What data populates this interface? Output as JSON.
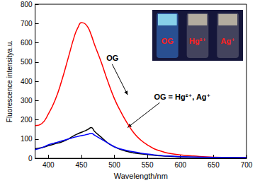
{
  "chart_data": {
    "type": "line",
    "x_label": "Wavelength/nm",
    "y_label": "Fluorescence intensitya.u.",
    "x": [
      380,
      390,
      400,
      410,
      420,
      430,
      440,
      445,
      450,
      455,
      460,
      465,
      470,
      480,
      490,
      500,
      510,
      520,
      530,
      540,
      550,
      560,
      570,
      580,
      600,
      620,
      650,
      700
    ],
    "series": [
      {
        "name": "OG",
        "color": "#ff0000",
        "values": [
          170,
          180,
          230,
          300,
          400,
          520,
          640,
          680,
          705,
          700,
          680,
          640,
          590,
          500,
          400,
          310,
          240,
          180,
          130,
          95,
          70,
          50,
          38,
          28,
          18,
          12,
          6,
          3
        ]
      },
      {
        "name": "Hg²⁺",
        "color": "#000000",
        "values": [
          50,
          55,
          65,
          75,
          85,
          100,
          120,
          128,
          135,
          142,
          150,
          160,
          140,
          110,
          80,
          60,
          45,
          35,
          28,
          23,
          20,
          16,
          13,
          11,
          8,
          6,
          5,
          3
        ]
      },
      {
        "name": "Ag⁺",
        "color": "#0000ff",
        "values": [
          45,
          55,
          70,
          80,
          90,
          100,
          110,
          114,
          118,
          121,
          125,
          130,
          120,
          100,
          80,
          60,
          48,
          40,
          33,
          27,
          22,
          18,
          15,
          12,
          9,
          7,
          5,
          3
        ]
      }
    ],
    "xlim": [
      380,
      700
    ],
    "xticks": [
      400,
      450,
      500,
      550,
      600,
      650,
      700
    ],
    "ylim": [
      0,
      800
    ],
    "yticks": [
      0,
      100,
      200,
      300,
      400,
      500,
      600,
      700,
      800
    ],
    "grid": false,
    "annotations": [
      {
        "text": "OG",
        "x": 488,
        "y": 500,
        "arrow_to": [
          520,
          330
        ]
      },
      {
        "text": "OG = Hg²⁺, Ag⁺",
        "x": 560,
        "y": 300,
        "arrow_to": [
          520,
          160
        ]
      }
    ],
    "inset_labels": [
      "OG",
      "Hg²⁺",
      "Ag⁺"
    ]
  }
}
